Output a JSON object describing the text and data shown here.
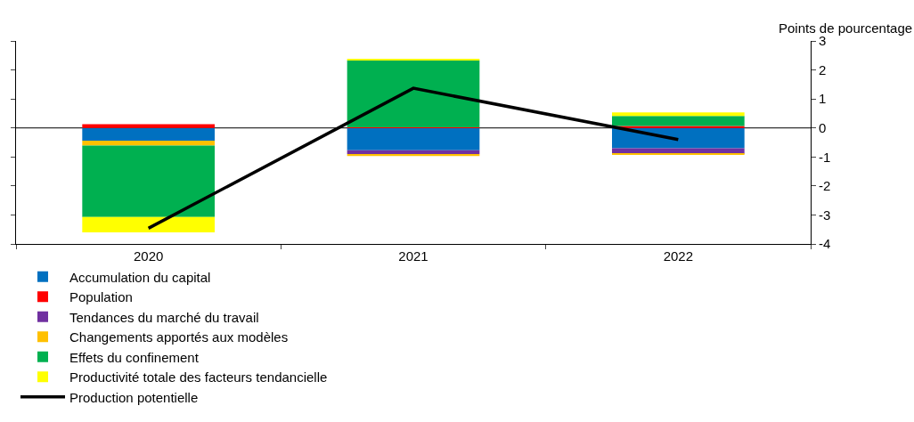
{
  "chart_data": {
    "type": "bar",
    "stacked": true,
    "ylabel": "Points de pourcentage",
    "categories": [
      "2020",
      "2021",
      "2022"
    ],
    "series": [
      {
        "name": "Accumulation du capital",
        "color": "#0070c0",
        "values": [
          -0.44,
          -0.77,
          -0.7
        ]
      },
      {
        "name": "Population",
        "color": "#ff0000",
        "values": [
          0.13,
          0.02,
          0.07
        ]
      },
      {
        "name": "Tendances du marché du travail",
        "color": "#7030a0",
        "values": [
          0,
          -0.13,
          -0.19
        ]
      },
      {
        "name": "Changements apportés aux modèles",
        "color": "#ffc000",
        "values": [
          -0.17,
          -0.07,
          -0.04
        ]
      },
      {
        "name": "Effets du confinement",
        "color": "#00b050",
        "values": [
          -2.46,
          2.31,
          0.34
        ]
      },
      {
        "name": "Productivité totale des facteurs tendancielle",
        "color": "#ffff00",
        "values": [
          -0.53,
          0.04,
          0.13
        ]
      },
      {
        "name": "Production potentielle",
        "type": "line",
        "color": "#000000",
        "values": [
          -3.46,
          1.37,
          -0.4
        ]
      }
    ],
    "ylim": [
      -4,
      3
    ],
    "yticks": [
      -4,
      -3,
      -2,
      -1,
      0,
      1,
      2,
      3
    ],
    "ref_lines": [
      {
        "axis": "y",
        "value": 0,
        "color": "#000000"
      }
    ],
    "legend": "bottom"
  }
}
